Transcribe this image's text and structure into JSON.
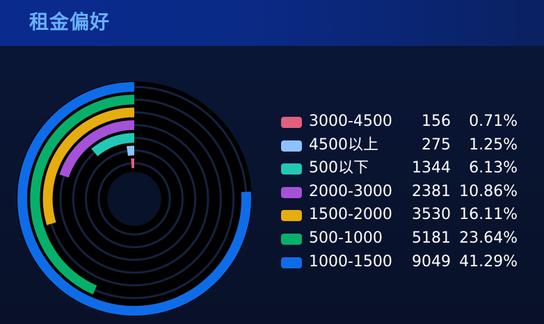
{
  "header": {
    "title": "租金偏好"
  },
  "chart_data": {
    "type": "radial-bar",
    "items": [
      {
        "label": "3000-4500",
        "value": 156,
        "percent": "0.71%",
        "color": "#e0607e"
      },
      {
        "label": "4500以上",
        "value": 275,
        "percent": "1.25%",
        "color": "#8cc2ff"
      },
      {
        "label": "500以下",
        "value": 1344,
        "percent": "6.13%",
        "color": "#23c8b5"
      },
      {
        "label": "2000-3000",
        "value": 2381,
        "percent": "10.86%",
        "color": "#a552d8"
      },
      {
        "label": "1500-2000",
        "value": 3530,
        "percent": "16.11%",
        "color": "#e5ad10"
      },
      {
        "label": "500-1000",
        "value": 5181,
        "percent": "23.64%",
        "color": "#07b06a"
      },
      {
        "label": "1000-1500",
        "value": 9049,
        "percent": "41.29%",
        "color": "#0f6ce8"
      }
    ]
  }
}
